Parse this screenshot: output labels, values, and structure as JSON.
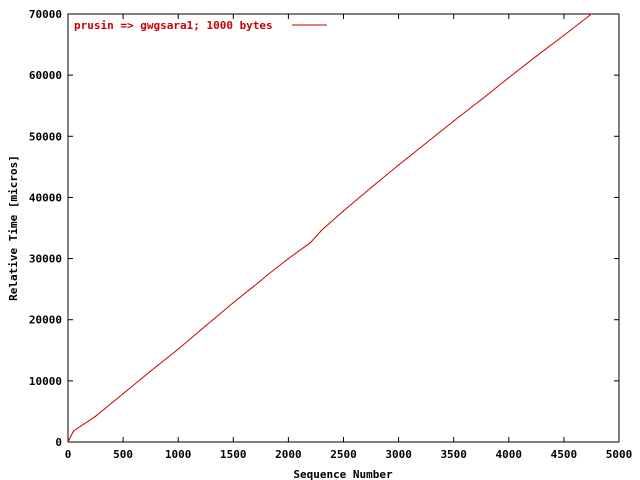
{
  "chart_data": {
    "type": "line",
    "title": "",
    "xlabel": "Sequence Number",
    "ylabel": "Relative Time [micros]",
    "xlim": [
      0,
      5000
    ],
    "ylim": [
      0,
      70000
    ],
    "xticks": [
      0,
      500,
      1000,
      1500,
      2000,
      2500,
      3000,
      3500,
      4000,
      4500,
      5000
    ],
    "yticks": [
      0,
      10000,
      20000,
      30000,
      40000,
      50000,
      60000,
      70000
    ],
    "xtick_labels": [
      "0",
      "500",
      "1000",
      "1500",
      "2000",
      "2500",
      "3000",
      "3500",
      "4000",
      "4500",
      "5000"
    ],
    "ytick_labels": [
      "0",
      "10000",
      "20000",
      "30000",
      "40000",
      "50000",
      "60000",
      "70000"
    ],
    "grid": false,
    "legend_position": "top-left",
    "series": [
      {
        "name": "prusin => gwgsara1; 1000 bytes",
        "color": "#cc0000",
        "x": [
          0,
          50,
          250,
          500,
          750,
          1000,
          1250,
          1500,
          1750,
          1800,
          2000,
          2200,
          2300,
          2500,
          2750,
          3000,
          3250,
          3500,
          3750,
          4000,
          4250,
          4500,
          4750
        ],
        "y": [
          0,
          1800,
          4200,
          7900,
          11600,
          15200,
          19000,
          22800,
          26400,
          27200,
          30000,
          32600,
          34600,
          37800,
          41600,
          45300,
          48900,
          52500,
          56000,
          59600,
          63100,
          66500,
          70000
        ]
      }
    ]
  }
}
